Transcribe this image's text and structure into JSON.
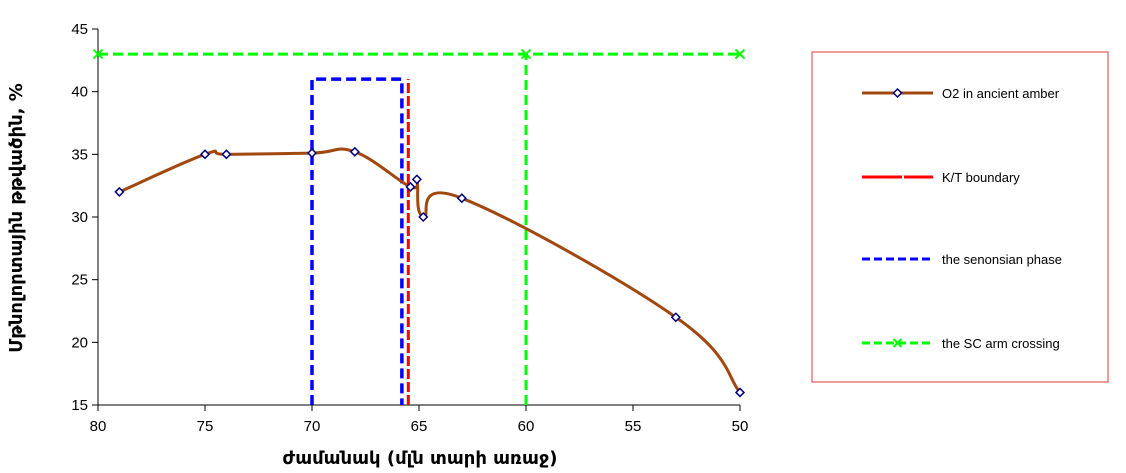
{
  "chart_data": {
    "type": "line",
    "xlabel": "ժամանակ (մլն տարի առաջ)",
    "ylabel": "Մթնոլորտային թթվածին, %",
    "xlim": [
      80,
      50
    ],
    "ylim": [
      15,
      45
    ],
    "xticks": [
      80,
      75,
      70,
      65,
      60,
      55,
      50
    ],
    "yticks": [
      15,
      20,
      25,
      30,
      35,
      40,
      45
    ],
    "grid": false,
    "legend_position": "right",
    "series": [
      {
        "name": "O2 in ancient amber",
        "color": "#a0480e",
        "style": "solid-smooth",
        "marker": "diamond",
        "points": [
          [
            79,
            32
          ],
          [
            75,
            35
          ],
          [
            74,
            35
          ],
          [
            70,
            35.1
          ],
          [
            68,
            35.2
          ],
          [
            65.4,
            32.4
          ],
          [
            65.1,
            33
          ],
          [
            64.8,
            30
          ],
          [
            63,
            31.5
          ],
          [
            53,
            22
          ],
          [
            50,
            16
          ]
        ]
      },
      {
        "name": "K/T boundary",
        "color": "#ff0000",
        "style": "dashed",
        "marker": "none",
        "points": [
          [
            65.5,
            15
          ],
          [
            65.5,
            41
          ]
        ]
      },
      {
        "name": "the senonsian phase",
        "color": "#0000ff",
        "style": "dashed",
        "marker": "none",
        "points": [
          [
            70,
            15
          ],
          [
            70,
            41
          ],
          [
            65.8,
            41
          ],
          [
            65.8,
            15
          ]
        ]
      },
      {
        "name": "the SC arm crossing",
        "color": "#00ff00",
        "style": "dashed",
        "marker": "x",
        "points": [
          [
            80,
            43
          ],
          [
            60,
            43
          ],
          [
            50,
            43
          ]
        ],
        "vertical": [
          [
            60,
            15
          ],
          [
            60,
            43
          ]
        ]
      }
    ]
  }
}
